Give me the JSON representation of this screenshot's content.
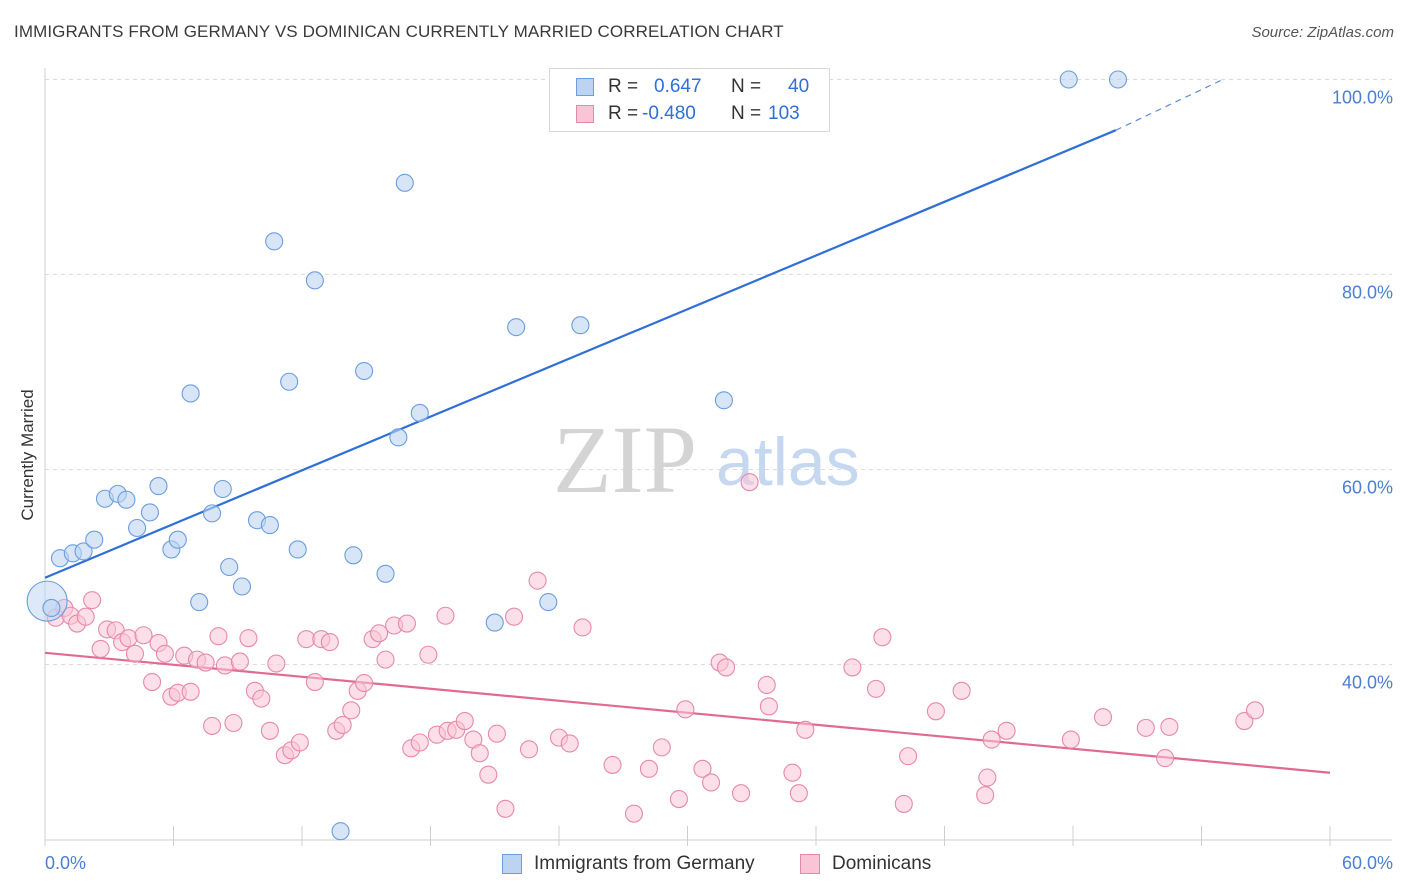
{
  "header": {
    "title": "IMMIGRANTS FROM GERMANY VS DOMINICAN CURRENTLY MARRIED CORRELATION CHART",
    "source": "Source: ZipAtlas.com"
  },
  "watermark": {
    "zip": "ZIP",
    "atlas": "atlas"
  },
  "legend_top": {
    "rows": [
      {
        "r_label": "R =",
        "r_value": "0.647",
        "n_label": "N =",
        "n_value": "40"
      },
      {
        "r_label": "R =",
        "r_value": "-0.480",
        "n_label": "N =",
        "n_value": "103"
      }
    ]
  },
  "legend_bottom": {
    "items": [
      {
        "label": "Immigrants from Germany"
      },
      {
        "label": "Dominicans"
      }
    ]
  },
  "colors": {
    "germany_fill": "#bcd4f2",
    "germany_stroke": "#6a9ee0",
    "germany_line": "#2f6fd6",
    "dominican_fill": "#f9c5d6",
    "dominican_stroke": "#e889a8",
    "dominican_line": "#e06a94",
    "grid": "#dcdcdc",
    "axis_text": "#4a7fd4"
  },
  "chart_data": {
    "type": "scatter",
    "title": "IMMIGRANTS FROM GERMANY VS DOMINICAN CURRENTLY MARRIED CORRELATION CHART",
    "xlabel": "",
    "ylabel": "Currently Married",
    "xlim": [
      0,
      60
    ],
    "ylim": [
      22,
      102
    ],
    "x_tick_labels": [
      "0.0%",
      "60.0%"
    ],
    "y_ticks": [
      40,
      60,
      80,
      100
    ],
    "y_tick_labels": [
      "40.0%",
      "60.0%",
      "80.0%",
      "100.0%"
    ],
    "grid": true,
    "legend_position": "top-center",
    "series": [
      {
        "name": "Immigrants from Germany",
        "r": 0.647,
        "n": 40,
        "trend": {
          "x0": 0,
          "y0": 48.9,
          "x1": 50,
          "y1": 94.8,
          "dashed_to_x": 55,
          "dashed_to_y": 100
        },
        "points": [
          [
            0.1,
            46.5
          ],
          [
            0.7,
            50.9
          ],
          [
            1.3,
            51.4
          ],
          [
            1.8,
            51.6
          ],
          [
            2.3,
            52.8
          ],
          [
            2.8,
            57.0
          ],
          [
            3.4,
            57.5
          ],
          [
            3.8,
            56.9
          ],
          [
            4.3,
            54.0
          ],
          [
            4.9,
            55.6
          ],
          [
            5.3,
            58.3
          ],
          [
            5.9,
            51.8
          ],
          [
            6.2,
            52.8
          ],
          [
            6.8,
            67.8
          ],
          [
            7.2,
            46.4
          ],
          [
            7.8,
            55.5
          ],
          [
            8.3,
            58.0
          ],
          [
            8.6,
            50.0
          ],
          [
            9.2,
            48.0
          ],
          [
            9.9,
            54.8
          ],
          [
            10.5,
            54.3
          ],
          [
            10.7,
            83.4
          ],
          [
            11.4,
            69.0
          ],
          [
            11.8,
            51.8
          ],
          [
            12.6,
            79.4
          ],
          [
            13.8,
            22.9
          ],
          [
            14.4,
            51.2
          ],
          [
            14.9,
            70.1
          ],
          [
            15.9,
            49.3
          ],
          [
            16.5,
            63.3
          ],
          [
            16.8,
            89.4
          ],
          [
            17.5,
            65.8
          ],
          [
            21.0,
            44.3
          ],
          [
            22.0,
            74.6
          ],
          [
            23.5,
            46.4
          ],
          [
            25.0,
            74.8
          ],
          [
            31.7,
            67.1
          ],
          [
            47.8,
            100.0
          ],
          [
            50.1,
            100.0
          ],
          [
            0.3,
            45.8
          ]
        ]
      },
      {
        "name": "Dominicans",
        "r": -0.48,
        "n": 103,
        "trend": {
          "x0": 0,
          "y0": 41.2,
          "x1": 60,
          "y1": 28.9
        },
        "points": [
          [
            0.5,
            44.8
          ],
          [
            0.9,
            45.8
          ],
          [
            1.2,
            45.0
          ],
          [
            1.5,
            44.2
          ],
          [
            1.9,
            44.9
          ],
          [
            2.2,
            46.6
          ],
          [
            2.6,
            41.6
          ],
          [
            2.9,
            43.6
          ],
          [
            3.3,
            43.5
          ],
          [
            3.6,
            42.3
          ],
          [
            3.9,
            42.7
          ],
          [
            4.2,
            41.1
          ],
          [
            4.6,
            43.0
          ],
          [
            5.0,
            38.2
          ],
          [
            5.3,
            42.2
          ],
          [
            5.6,
            41.1
          ],
          [
            5.9,
            36.7
          ],
          [
            6.2,
            37.1
          ],
          [
            6.5,
            40.9
          ],
          [
            6.8,
            37.2
          ],
          [
            7.1,
            40.5
          ],
          [
            7.5,
            40.2
          ],
          [
            7.8,
            33.7
          ],
          [
            8.1,
            42.9
          ],
          [
            8.4,
            39.9
          ],
          [
            8.8,
            34.0
          ],
          [
            9.1,
            40.3
          ],
          [
            9.5,
            42.7
          ],
          [
            9.8,
            37.3
          ],
          [
            10.1,
            36.5
          ],
          [
            10.5,
            33.2
          ],
          [
            10.8,
            40.1
          ],
          [
            11.2,
            30.7
          ],
          [
            11.5,
            31.2
          ],
          [
            11.9,
            32.0
          ],
          [
            12.2,
            42.6
          ],
          [
            12.6,
            38.2
          ],
          [
            12.9,
            42.6
          ],
          [
            13.3,
            42.3
          ],
          [
            13.6,
            33.2
          ],
          [
            13.9,
            33.8
          ],
          [
            14.3,
            35.3
          ],
          [
            14.6,
            37.3
          ],
          [
            14.9,
            38.1
          ],
          [
            15.3,
            42.6
          ],
          [
            15.6,
            43.2
          ],
          [
            15.9,
            40.5
          ],
          [
            16.3,
            44.0
          ],
          [
            16.9,
            44.2
          ],
          [
            17.1,
            31.4
          ],
          [
            17.5,
            32.0
          ],
          [
            17.9,
            41.0
          ],
          [
            18.3,
            32.8
          ],
          [
            18.7,
            45.0
          ],
          [
            18.8,
            33.2
          ],
          [
            19.2,
            33.3
          ],
          [
            19.6,
            34.2
          ],
          [
            20.0,
            32.3
          ],
          [
            20.3,
            30.9
          ],
          [
            20.7,
            28.7
          ],
          [
            21.1,
            32.9
          ],
          [
            21.5,
            25.2
          ],
          [
            21.9,
            44.9
          ],
          [
            22.6,
            31.3
          ],
          [
            23.0,
            48.6
          ],
          [
            24.0,
            32.5
          ],
          [
            24.5,
            31.9
          ],
          [
            25.1,
            43.8
          ],
          [
            26.5,
            29.7
          ],
          [
            27.5,
            24.7
          ],
          [
            28.2,
            29.3
          ],
          [
            28.8,
            31.5
          ],
          [
            29.6,
            26.2
          ],
          [
            29.9,
            35.4
          ],
          [
            30.7,
            29.3
          ],
          [
            31.1,
            27.9
          ],
          [
            31.5,
            40.2
          ],
          [
            31.8,
            39.7
          ],
          [
            32.5,
            26.8
          ],
          [
            32.9,
            58.7
          ],
          [
            33.7,
            37.9
          ],
          [
            33.8,
            35.7
          ],
          [
            34.9,
            28.9
          ],
          [
            35.2,
            26.8
          ],
          [
            35.5,
            33.3
          ],
          [
            37.7,
            39.7
          ],
          [
            38.8,
            37.5
          ],
          [
            39.1,
            42.8
          ],
          [
            40.1,
            25.7
          ],
          [
            40.3,
            30.6
          ],
          [
            41.6,
            35.2
          ],
          [
            42.8,
            37.3
          ],
          [
            43.9,
            26.6
          ],
          [
            44.0,
            28.4
          ],
          [
            44.2,
            32.3
          ],
          [
            44.9,
            33.2
          ],
          [
            47.9,
            32.3
          ],
          [
            49.4,
            34.6
          ],
          [
            51.4,
            33.5
          ],
          [
            52.3,
            30.4
          ],
          [
            52.5,
            33.6
          ],
          [
            56.0,
            34.2
          ],
          [
            56.5,
            35.3
          ]
        ]
      }
    ]
  }
}
